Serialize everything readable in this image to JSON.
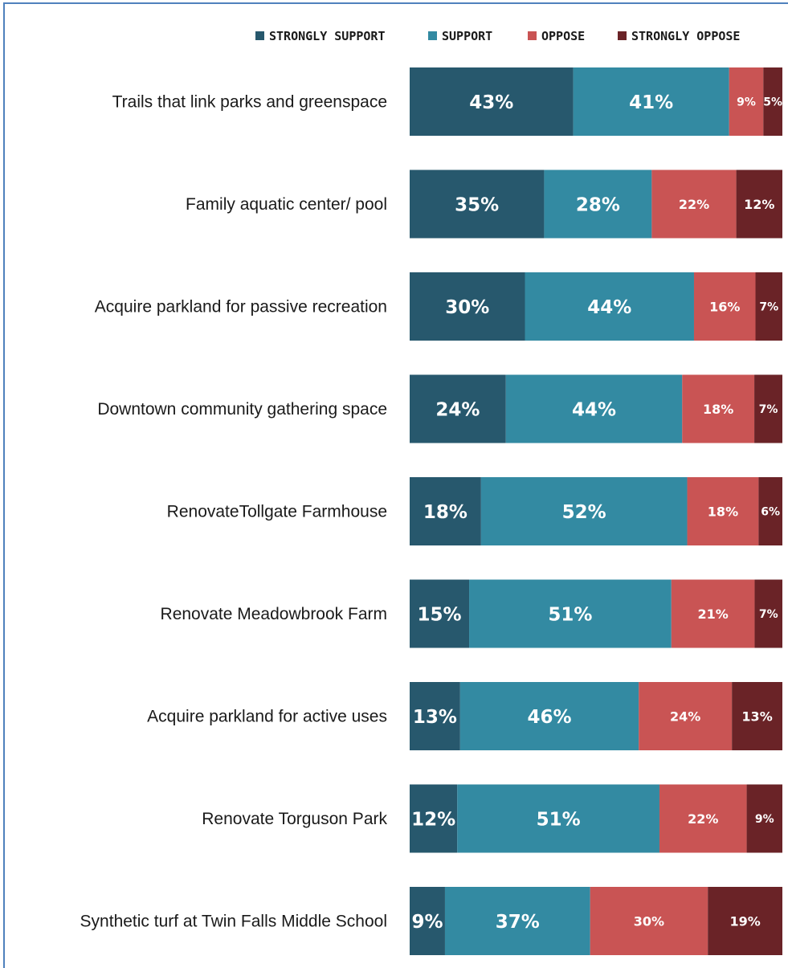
{
  "chart_data": {
    "type": "bar",
    "orientation": "horizontal",
    "stacked": true,
    "percent": true,
    "title": "",
    "xlabel": "",
    "ylabel": "",
    "xlim": [
      0,
      100
    ],
    "grid": false,
    "legend_position": "top-right",
    "categories": [
      "Trails that link parks and greenspace",
      "Family aquatic center/ pool",
      "Acquire parkland for passive recreation",
      "Downtown community gathering space",
      "RenovateTollgate Farmhouse",
      "Renovate Meadowbrook Farm",
      "Acquire parkland for active uses",
      "Renovate Torguson Park",
      "Synthetic turf at Twin Falls Middle School"
    ],
    "series": [
      {
        "name": "STRONGLY SUPPORT",
        "color": "#27586d",
        "values": [
          43,
          35,
          30,
          24,
          18,
          15,
          13,
          12,
          9
        ]
      },
      {
        "name": "SUPPORT",
        "color": "#338aa2",
        "values": [
          41,
          28,
          44,
          44,
          52,
          51,
          46,
          51,
          37
        ]
      },
      {
        "name": "OPPOSE",
        "color": "#c95454",
        "values": [
          9,
          22,
          16,
          18,
          18,
          21,
          24,
          22,
          30
        ]
      },
      {
        "name": "STRONGLY OPPOSE",
        "color": "#6a2327",
        "values": [
          5,
          12,
          7,
          7,
          6,
          7,
          13,
          9,
          19
        ]
      }
    ]
  }
}
